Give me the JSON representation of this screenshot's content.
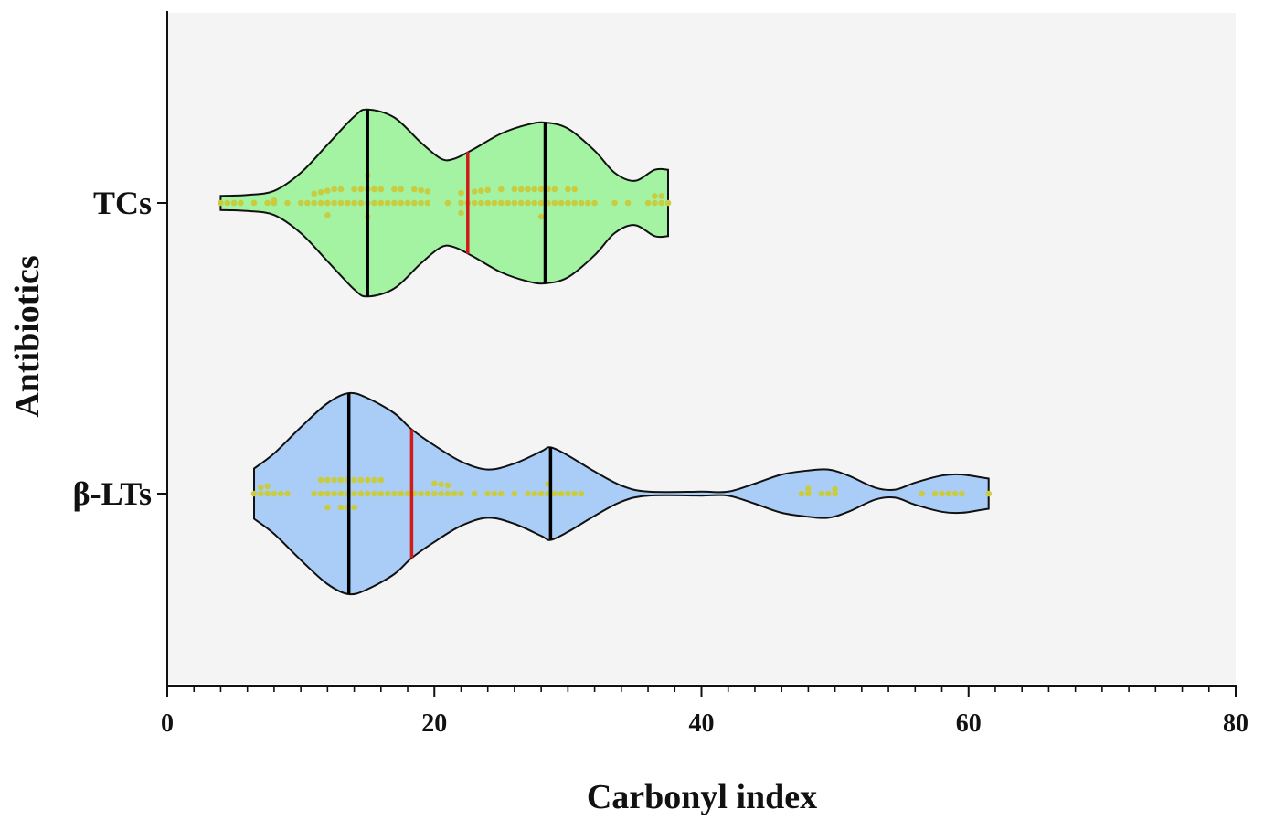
{
  "chart_data": {
    "type": "violin",
    "orientation": "horizontal",
    "title": "",
    "xlabel": "Carbonyl index",
    "ylabel": "Antibiotics",
    "xlim": [
      0,
      80
    ],
    "x_major_ticks": [
      0,
      20,
      40,
      60,
      80
    ],
    "x_minor_tick_step": 2,
    "grid": false,
    "legend": "none",
    "colors": {
      "plot_background": "#f4f4f4",
      "point": "#c9cc3f",
      "quartile_line": "#000000",
      "median_line": "#d11a1a"
    },
    "categories": [
      "TCs",
      "β-LTs"
    ],
    "series": [
      {
        "category": "TCs",
        "fill": "#a3f3a2",
        "min": 4,
        "max": 37.5,
        "q1": 15,
        "median": 22.5,
        "q3": 28.3,
        "density": [
          [
            4,
            0.07
          ],
          [
            6,
            0.08
          ],
          [
            8,
            0.12
          ],
          [
            10,
            0.3
          ],
          [
            12,
            0.58
          ],
          [
            14,
            0.86
          ],
          [
            15,
            0.93
          ],
          [
            17,
            0.85
          ],
          [
            19,
            0.6
          ],
          [
            20.5,
            0.44
          ],
          [
            21.5,
            0.44
          ],
          [
            23,
            0.54
          ],
          [
            25,
            0.69
          ],
          [
            27,
            0.78
          ],
          [
            28.3,
            0.8
          ],
          [
            30,
            0.74
          ],
          [
            32,
            0.52
          ],
          [
            33.5,
            0.3
          ],
          [
            35,
            0.22
          ],
          [
            36.5,
            0.33
          ],
          [
            37.5,
            0.33
          ]
        ],
        "points": [
          4,
          4.5,
          5,
          5.5,
          6.5,
          7.5,
          8,
          8,
          9,
          10,
          10.5,
          11,
          11,
          11.5,
          11.5,
          12,
          12,
          12,
          12.5,
          12.5,
          13,
          13,
          13.5,
          14,
          14,
          14.5,
          14.5,
          15,
          15,
          15,
          15,
          15.5,
          15.5,
          16,
          16,
          16.5,
          17,
          17,
          17.5,
          17.5,
          18,
          18.5,
          18.5,
          19,
          19,
          19.5,
          19.5,
          21,
          22,
          22,
          22,
          22.5,
          23,
          23,
          23.5,
          23.5,
          24,
          24,
          24.5,
          25,
          25,
          25.5,
          26,
          26,
          26.5,
          26.5,
          27,
          27,
          27.5,
          27.5,
          28,
          28,
          28,
          28.5,
          28.5,
          29,
          29,
          29.5,
          30,
          30,
          30.5,
          30.5,
          31,
          31.5,
          32,
          33.5,
          34.5,
          36,
          36.5,
          36.5,
          37,
          37,
          37.5
        ]
      },
      {
        "category": "β-LTs",
        "fill": "#a9cdf6",
        "min": 6.5,
        "max": 61.5,
        "q1": 13.6,
        "median": 18.3,
        "q3": 28.7,
        "density": [
          [
            6.5,
            0.25
          ],
          [
            8,
            0.4
          ],
          [
            10,
            0.66
          ],
          [
            12,
            0.9
          ],
          [
            13.6,
            1.0
          ],
          [
            15,
            0.95
          ],
          [
            17,
            0.8
          ],
          [
            18.3,
            0.64
          ],
          [
            20,
            0.48
          ],
          [
            22,
            0.32
          ],
          [
            24,
            0.24
          ],
          [
            26,
            0.3
          ],
          [
            28,
            0.42
          ],
          [
            28.7,
            0.46
          ],
          [
            30,
            0.38
          ],
          [
            32,
            0.22
          ],
          [
            34,
            0.08
          ],
          [
            36,
            0.02
          ],
          [
            40,
            0.02
          ],
          [
            42,
            0.02
          ],
          [
            44,
            0.1
          ],
          [
            46,
            0.19
          ],
          [
            48,
            0.23
          ],
          [
            49.5,
            0.24
          ],
          [
            51,
            0.18
          ],
          [
            53,
            0.06
          ],
          [
            54.5,
            0.04
          ],
          [
            56,
            0.11
          ],
          [
            58,
            0.18
          ],
          [
            59.5,
            0.19
          ],
          [
            61,
            0.16
          ],
          [
            61.5,
            0.15
          ]
        ],
        "points": [
          6.5,
          7,
          7,
          7.5,
          7.5,
          8,
          8.5,
          9,
          11,
          11.5,
          11.5,
          12,
          12,
          12,
          12.5,
          12.5,
          13,
          13,
          13,
          13.5,
          13.5,
          13.5,
          14,
          14,
          14,
          14.5,
          14.5,
          15,
          15,
          15.5,
          15.5,
          16,
          16,
          16.5,
          17,
          17.5,
          18,
          18.5,
          19,
          19.5,
          20,
          20,
          20.5,
          20.5,
          21,
          21,
          21.5,
          22,
          23,
          24,
          24.5,
          25,
          26,
          27,
          27.5,
          28,
          28.5,
          28.5,
          29,
          29.5,
          30,
          30.5,
          31,
          47.5,
          48,
          48,
          49,
          49.5,
          50,
          50,
          56.5,
          57.5,
          58,
          58.5,
          59,
          59.5,
          61.5
        ]
      }
    ]
  }
}
